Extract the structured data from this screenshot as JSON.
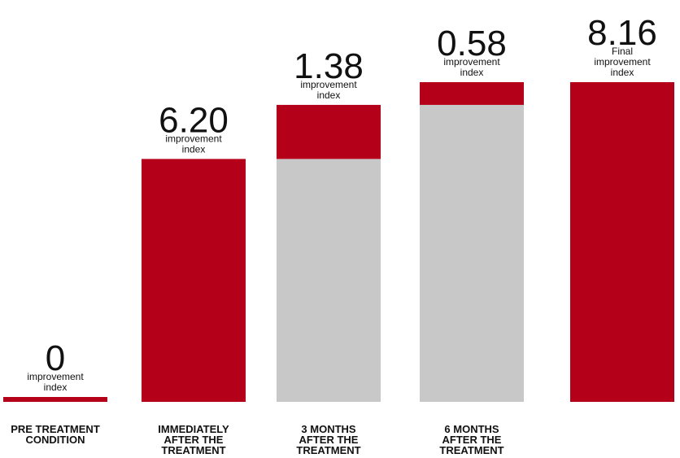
{
  "chart_data": {
    "type": "bar",
    "subtype": "waterfall",
    "categories": [
      [
        "PRE TREATMENT",
        "CONDITION"
      ],
      [
        "IMMEDIATELY",
        "AFTER THE",
        "TREATMENT"
      ],
      [
        "3 MONTHS",
        "AFTER THE",
        "TREATMENT"
      ],
      [
        "6 MONTHS",
        "AFTER THE",
        "TREATMENT"
      ],
      [
        ""
      ]
    ],
    "bars": [
      {
        "value": "0",
        "base": 0,
        "delta": 0,
        "kind": "increment",
        "sublabel": [
          "improvement",
          "index"
        ]
      },
      {
        "value": "6.20",
        "base": 0,
        "delta": 6.2,
        "kind": "increment",
        "sublabel": [
          "improvement",
          "index"
        ]
      },
      {
        "value": "1.38",
        "base": 6.2,
        "delta": 1.38,
        "kind": "increment",
        "sublabel": [
          "improvement",
          "index"
        ]
      },
      {
        "value": "0.58",
        "base": 7.58,
        "delta": 0.58,
        "kind": "increment",
        "sublabel": [
          "improvement",
          "index"
        ]
      },
      {
        "value": "8.16",
        "base": 0,
        "delta": 8.16,
        "kind": "total",
        "sublabel": [
          "Final",
          "improvement",
          "index"
        ]
      }
    ],
    "ylim": [
      0,
      8.16
    ],
    "colors": {
      "increment": "#b5001a",
      "base": "#c8c8c8",
      "total_value_text": "#b5001a",
      "value_text": "#111111"
    }
  }
}
